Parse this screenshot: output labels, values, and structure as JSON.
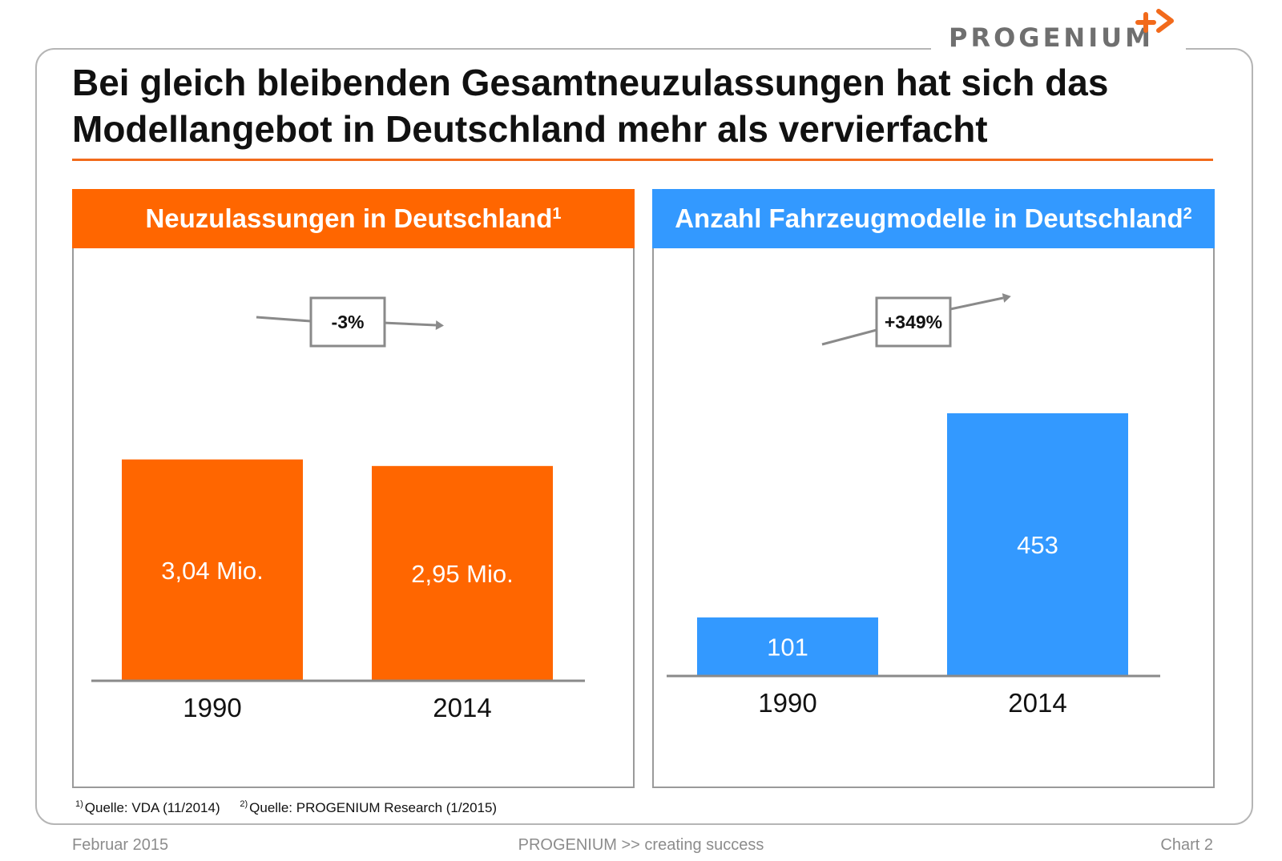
{
  "brand": {
    "logo_text": "PROGENIUM"
  },
  "title_line1": "Bei gleich bleibenden Gesamtneuzulassungen hat sich das",
  "title_line2": "Modellangebot in Deutschland mehr als vervierfacht",
  "colors": {
    "orange": "#ff6600",
    "blue": "#3399ff",
    "rule": "#f26a1b",
    "grey_text": "#8c8c8c"
  },
  "chart_data": [
    {
      "type": "bar",
      "title": "Neuzulassungen in Deutschland",
      "title_footnote": "1",
      "categories": [
        "1990",
        "2014"
      ],
      "values": [
        3.04,
        2.95
      ],
      "value_labels": [
        "3,04 Mio.",
        "2,95 Mio."
      ],
      "change_label": "-3%",
      "color": "#ff6600",
      "ylim": [
        0,
        3.3
      ]
    },
    {
      "type": "bar",
      "title": "Anzahl Fahrzeugmodelle in Deutschland",
      "title_footnote": "2",
      "categories": [
        "1990",
        "2014"
      ],
      "values": [
        101,
        453
      ],
      "value_labels": [
        "101",
        "453"
      ],
      "change_label": "+349%",
      "color": "#3399ff",
      "ylim": [
        0,
        453
      ]
    }
  ],
  "footnotes": [
    {
      "marker": "1)",
      "text": "Quelle: VDA  (11/2014)"
    },
    {
      "marker": "2)",
      "text": "Quelle: PROGENIUM Research (1/2015)"
    }
  ],
  "footer": {
    "left": "Februar 2015",
    "center": "PROGENIUM >> creating success",
    "right": "Chart 2"
  }
}
